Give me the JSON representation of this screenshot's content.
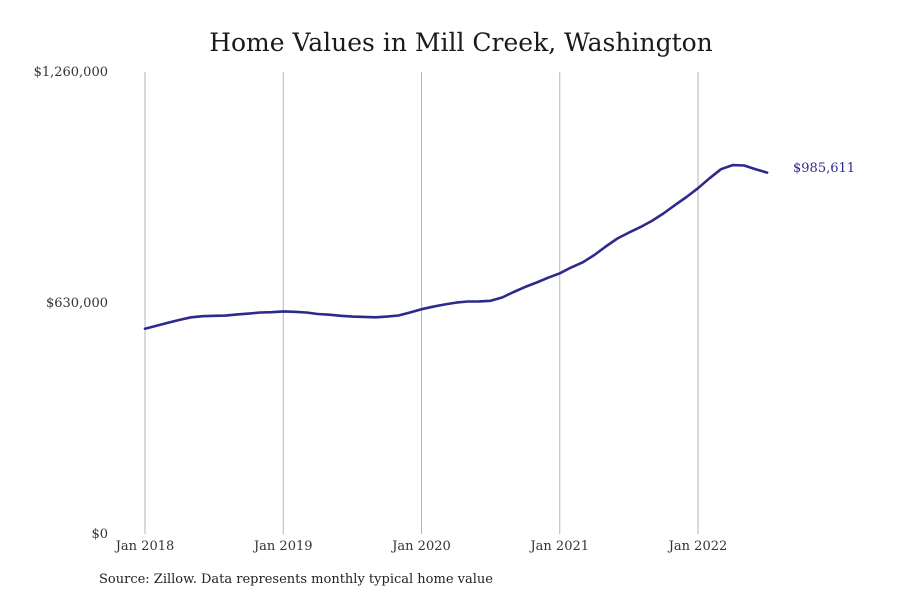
{
  "chart_data": {
    "type": "line",
    "title": "Home Values in Mill Creek, Washington",
    "xlabel": "",
    "ylabel": "",
    "ylim": [
      0,
      1260000
    ],
    "y_ticks": [
      0,
      630000,
      1260000
    ],
    "y_tick_labels": [
      "$0",
      "$630,000",
      "$1,260,000"
    ],
    "x_ticks": [
      "2018-01",
      "2019-01",
      "2020-01",
      "2021-01",
      "2022-01"
    ],
    "x_tick_labels": [
      "Jan 2018",
      "Jan 2019",
      "Jan 2020",
      "Jan 2021",
      "Jan 2022"
    ],
    "grid": "vertical",
    "line_color": "#2e2a8c",
    "series": [
      {
        "x": [
          "2018-01",
          "2018-02",
          "2018-03",
          "2018-04",
          "2018-05",
          "2018-06",
          "2018-07",
          "2018-08",
          "2018-09",
          "2018-10",
          "2018-11",
          "2018-12",
          "2019-01",
          "2019-02",
          "2019-03",
          "2019-04",
          "2019-05",
          "2019-06",
          "2019-07",
          "2019-08",
          "2019-09",
          "2019-10",
          "2019-11",
          "2019-12",
          "2020-01",
          "2020-02",
          "2020-03",
          "2020-04",
          "2020-05",
          "2020-06",
          "2020-07",
          "2020-08",
          "2020-09",
          "2020-10",
          "2020-11",
          "2020-12",
          "2021-01",
          "2021-02",
          "2021-03",
          "2021-04",
          "2021-05",
          "2021-06",
          "2021-07",
          "2021-08",
          "2021-09",
          "2021-10",
          "2021-11",
          "2021-12",
          "2022-01",
          "2022-02",
          "2022-03",
          "2022-04",
          "2022-05",
          "2022-06",
          "2022-07"
        ],
        "values": [
          560000,
          568000,
          576000,
          584000,
          591000,
          594000,
          595000,
          595500,
          599000,
          601000,
          604000,
          605000,
          607000,
          606000,
          604000,
          600000,
          598000,
          595000,
          593000,
          592000,
          591000,
          593000,
          596000,
          604000,
          613000,
          620000,
          626000,
          631000,
          634000,
          634500,
          636000,
          645000,
          660000,
          674000,
          686000,
          699000,
          711000,
          727000,
          741000,
          761000,
          784000,
          806000,
          822000,
          837000,
          854000,
          874000,
          897000,
          919000,
          943000,
          970000,
          995000,
          1006000,
          1005000,
          995000,
          985611
        ]
      }
    ],
    "end_label": "$985,611",
    "source_note": "Source: Zillow. Data represents monthly typical home value"
  }
}
